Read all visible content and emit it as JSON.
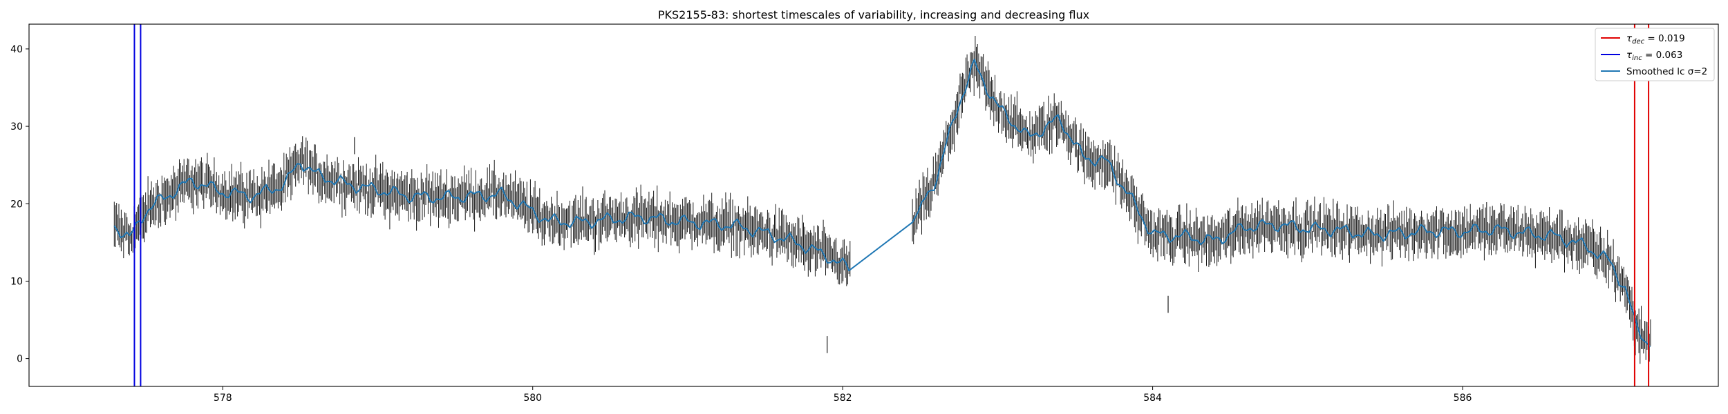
{
  "chart_data": {
    "type": "line",
    "title": "PKS2155-83: shortest timescales of variability, increasing and decreasing flux",
    "xlabel": "",
    "ylabel": "",
    "xlim": [
      576.75,
      587.65
    ],
    "ylim": [
      -3.6,
      43.2
    ],
    "x_ticks": [
      578,
      580,
      582,
      584,
      586
    ],
    "y_ticks": [
      0,
      10,
      20,
      30,
      40
    ],
    "grid": false,
    "legend_position": "top-right",
    "colors": {
      "errorbars": "#1a1a1a",
      "smoothed": "#1f77b4",
      "dec": "#e00000",
      "inc": "#0000e0",
      "axes": "#000000"
    },
    "legend": [
      {
        "symbol": "τ",
        "sub": "dec",
        "text": " = 0.019",
        "color": "#e00000",
        "kind": "line"
      },
      {
        "symbol": "τ",
        "sub": "inc",
        "text": " = 0.063",
        "color": "#0000e0",
        "kind": "line"
      },
      {
        "symbol": "",
        "sub": "",
        "text": "Smoothed lc σ=2",
        "color": "#1f77b4",
        "kind": "line"
      }
    ],
    "vlines_dec": [
      587.11,
      587.2
    ],
    "vlines_inc": [
      577.43,
      577.47
    ],
    "series": [
      {
        "name": "Smoothed lc σ=2",
        "x": [
          577.3,
          577.4,
          577.5,
          577.6,
          577.8,
          578.0,
          578.2,
          578.4,
          578.5,
          578.6,
          578.8,
          579.0,
          579.2,
          579.4,
          579.6,
          579.8,
          580.0,
          580.1,
          580.3,
          580.5,
          580.7,
          580.9,
          581.1,
          581.3,
          581.5,
          581.7,
          581.9,
          582.05,
          582.45,
          582.6,
          582.75,
          582.85,
          583.0,
          583.2,
          583.4,
          583.55,
          583.7,
          583.85,
          584.0,
          584.2,
          584.4,
          584.6,
          584.8,
          585.0,
          585.2,
          585.4,
          585.6,
          585.8,
          586.0,
          586.2,
          586.4,
          586.6,
          586.8,
          586.95,
          587.05,
          587.12,
          587.2
        ],
        "y": [
          17.2,
          15.5,
          19.0,
          20.5,
          23.0,
          21.5,
          21.0,
          22.5,
          25.5,
          23.8,
          22.5,
          21.8,
          21.0,
          20.8,
          21.0,
          21.2,
          19.0,
          17.8,
          17.6,
          18.0,
          18.3,
          17.8,
          17.5,
          17.2,
          16.2,
          15.0,
          13.2,
          11.5,
          17.6,
          23.0,
          33.0,
          38.0,
          32.5,
          28.5,
          31.0,
          26.0,
          25.5,
          21.0,
          16.0,
          15.8,
          15.2,
          17.0,
          17.3,
          16.8,
          16.6,
          16.0,
          16.2,
          16.5,
          16.4,
          16.7,
          16.2,
          15.8,
          14.5,
          12.5,
          9.0,
          4.0,
          2.0
        ]
      }
    ],
    "outliers": [
      [
        581.9,
        1.8
      ],
      [
        584.1,
        7.0
      ],
      [
        578.85,
        27.5
      ]
    ]
  }
}
